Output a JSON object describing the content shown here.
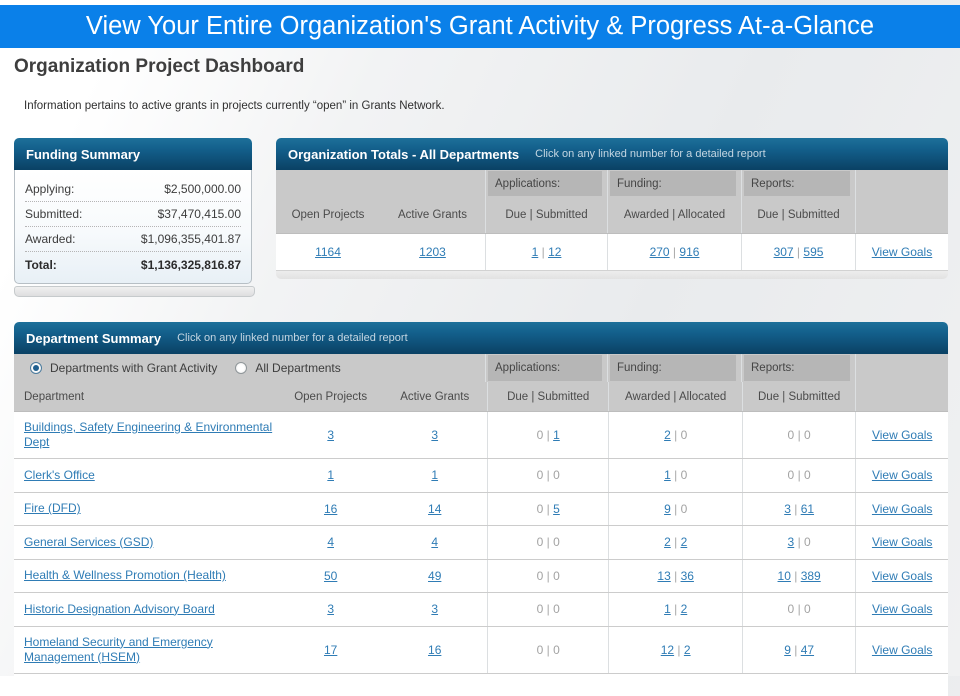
{
  "banner": {
    "title": "View Your Entire Organization's Grant Activity & Progress At-a-Glance"
  },
  "page": {
    "title": "Organization Project Dashboard",
    "note": "Information pertains to active grants in projects currently “open” in Grants Network."
  },
  "funding_summary": {
    "title": "Funding Summary",
    "rows": [
      {
        "label": "Applying:",
        "value": "$2,500,000.00"
      },
      {
        "label": "Submitted:",
        "value": "$37,470,415.00"
      },
      {
        "label": "Awarded:",
        "value": "$1,096,355,401.87"
      },
      {
        "label": "Total:",
        "value": "$1,136,325,816.87"
      }
    ]
  },
  "org_totals": {
    "title": "Organization Totals - All Departments",
    "subtitle": "Click on any linked number for a detailed report",
    "groups": {
      "applications": "Applications:",
      "funding": "Funding:",
      "reports": "Reports:"
    },
    "columns": {
      "open_projects": "Open Projects",
      "active_grants": "Active Grants",
      "applications": "Due | Submitted",
      "funding": "Awarded | Allocated",
      "reports": "Due | Submitted"
    },
    "totals": {
      "open_projects": "1164",
      "active_grants": "1203",
      "applications": {
        "due": "1",
        "submitted": "12"
      },
      "funding": {
        "awarded": "270",
        "allocated": "916"
      },
      "reports": {
        "due": "307",
        "submitted": "595"
      }
    },
    "view_goals_label": "View Goals"
  },
  "dept_summary": {
    "title": "Department Summary",
    "subtitle": "Click on any linked number for a detailed report",
    "filters": [
      {
        "label": "Departments with Grant Activity",
        "selected": true
      },
      {
        "label": "All Departments",
        "selected": false
      }
    ],
    "columns": {
      "department": "Department",
      "open_projects": "Open Projects",
      "active_grants": "Active Grants",
      "applications": "Due | Submitted",
      "funding": "Awarded | Allocated",
      "reports": "Due | Submitted"
    },
    "view_goals_label": "View Goals",
    "rows": [
      {
        "department": "Buildings, Safety Engineering & Environmental Dept",
        "open_projects": "3",
        "active_grants": "3",
        "applications": {
          "due": "0",
          "submitted": "1"
        },
        "funding": {
          "awarded": "2",
          "allocated": "0"
        },
        "reports": {
          "due": "0",
          "submitted": "0"
        }
      },
      {
        "department": "Clerk's Office",
        "open_projects": "1",
        "active_grants": "1",
        "applications": {
          "due": "0",
          "submitted": "0"
        },
        "funding": {
          "awarded": "1",
          "allocated": "0"
        },
        "reports": {
          "due": "0",
          "submitted": "0"
        }
      },
      {
        "department": "Fire (DFD)",
        "open_projects": "16",
        "active_grants": "14",
        "applications": {
          "due": "0",
          "submitted": "5"
        },
        "funding": {
          "awarded": "9",
          "allocated": "0"
        },
        "reports": {
          "due": "3",
          "submitted": "61"
        }
      },
      {
        "department": "General Services (GSD)",
        "open_projects": "4",
        "active_grants": "4",
        "applications": {
          "due": "0",
          "submitted": "0"
        },
        "funding": {
          "awarded": "2",
          "allocated": "2"
        },
        "reports": {
          "due": "3",
          "submitted": "0"
        }
      },
      {
        "department": "Health & Wellness Promotion (Health)",
        "open_projects": "50",
        "active_grants": "49",
        "applications": {
          "due": "0",
          "submitted": "0"
        },
        "funding": {
          "awarded": "13",
          "allocated": "36"
        },
        "reports": {
          "due": "10",
          "submitted": "389"
        }
      },
      {
        "department": "Historic Designation Advisory Board",
        "open_projects": "3",
        "active_grants": "3",
        "applications": {
          "due": "0",
          "submitted": "0"
        },
        "funding": {
          "awarded": "1",
          "allocated": "2"
        },
        "reports": {
          "due": "0",
          "submitted": "0"
        }
      },
      {
        "department": "Homeland Security and Emergency Management (HSEM)",
        "open_projects": "17",
        "active_grants": "16",
        "applications": {
          "due": "0",
          "submitted": "0"
        },
        "funding": {
          "awarded": "12",
          "allocated": "2"
        },
        "reports": {
          "due": "9",
          "submitted": "47"
        }
      }
    ]
  }
}
